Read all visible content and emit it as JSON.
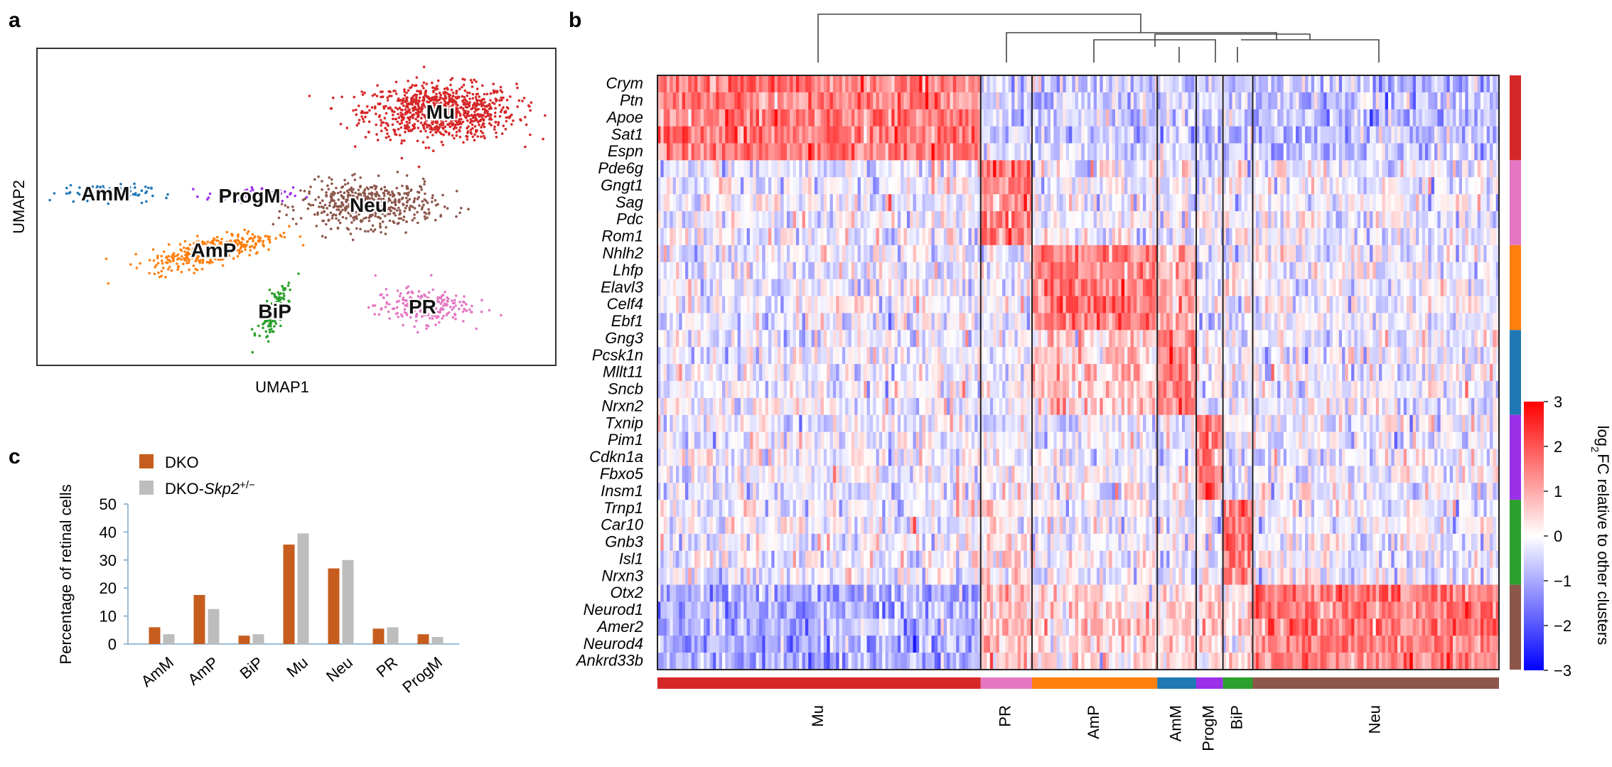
{
  "panels": {
    "a": "a",
    "b": "b",
    "c": "c"
  },
  "colors": {
    "Mu": "#d62728",
    "PR": "#e377c2",
    "AmP": "#ff7f0e",
    "AmM": "#1f77b4",
    "ProgM": "#9b30e8",
    "BiP": "#2ca02c",
    "Neu": "#8c564b",
    "DKO": "#c65d1e",
    "DKO_Skp2": "#bdbdbd"
  },
  "umap": {
    "xlabel": "UMAP1",
    "ylabel": "UMAP2",
    "clusters": [
      {
        "name": "Mu",
        "cx": 5.6,
        "cy": 8.6,
        "sx": 0.95,
        "sy": 0.55,
        "n": 900
      },
      {
        "name": "Neu",
        "cx": 4.6,
        "cy": 6.55,
        "sx": 0.85,
        "sy": 0.45,
        "n": 520
      },
      {
        "name": "AmM",
        "cx": 0.95,
        "cy": 6.8,
        "sx": 0.55,
        "sy": 0.18,
        "n": 110
      },
      {
        "name": "ProgM",
        "cx": 2.95,
        "cy": 6.75,
        "sx": 0.55,
        "sy": 0.16,
        "n": 60
      },
      {
        "name": "AmP",
        "cx": 2.45,
        "cy": 5.55,
        "sx": 0.8,
        "sy": 0.28,
        "n": 360
      },
      {
        "name": "BiP",
        "cx": 3.3,
        "cy": 4.2,
        "sx": 0.14,
        "sy": 0.55,
        "n": 120
      },
      {
        "name": "PR",
        "cx": 5.35,
        "cy": 4.3,
        "sx": 0.6,
        "sy": 0.35,
        "n": 220
      }
    ]
  },
  "bar": {
    "type": "bar",
    "title": "",
    "ylabel": "Percentage of retinal cells",
    "ylim": [
      0,
      50
    ],
    "yticks": [
      "0",
      "10",
      "20",
      "30",
      "40",
      "50"
    ],
    "categories": [
      "AmM",
      "AmP",
      "BiP",
      "Mu",
      "Neu",
      "PR",
      "ProgM"
    ],
    "legend": {
      "dko": "DKO",
      "skp2_prefix": "DKO-",
      "skp2_gene": "Skp2",
      "skp2_suffix": "+/−"
    },
    "series": [
      {
        "name": "DKO",
        "values": [
          6,
          17.5,
          3,
          35.5,
          27,
          5.5,
          3.5
        ]
      },
      {
        "name": "DKO-Skp2+/−",
        "values": [
          3.5,
          12.5,
          3.5,
          39.5,
          30,
          6,
          2.5
        ]
      }
    ]
  },
  "heatmap": {
    "genes": [
      "Crym",
      "Ptn",
      "Apoe",
      "Sat1",
      "Espn",
      "Pde6g",
      "Gngt1",
      "Sag",
      "Pdc",
      "Rom1",
      "Nhlh2",
      "Lhfp",
      "Elavl3",
      "Celf4",
      "Ebf1",
      "Gng3",
      "Pcsk1n",
      "Mllt11",
      "Sncb",
      "Nrxn2",
      "Txnip",
      "Pim1",
      "Cdkn1a",
      "Fbxo5",
      "Insm1",
      "Trnp1",
      "Car10",
      "Gnb3",
      "Isl1",
      "Nrxn3",
      "Otx2",
      "Neurod1",
      "Amer2",
      "Neurod4",
      "Ankrd33b"
    ],
    "gene_groups": [
      "Mu",
      "PR",
      "AmP",
      "AmM",
      "ProgM",
      "BiP",
      "Neu"
    ],
    "clusters": [
      {
        "name": "Mu",
        "cells": 315
      },
      {
        "name": "PR",
        "cells": 50
      },
      {
        "name": "AmP",
        "cells": 122
      },
      {
        "name": "AmM",
        "cells": 38
      },
      {
        "name": "ProgM",
        "cells": 26
      },
      {
        "name": "BiP",
        "cells": 29
      },
      {
        "name": "Neu",
        "cells": 240
      }
    ],
    "colorbar": {
      "min": -3,
      "max": 3,
      "ticks": [
        "3",
        "2",
        "1",
        "0",
        "−1",
        "−2",
        "−3"
      ],
      "label_prefix": "log",
      "label_sub": "2",
      "label_suffix": "FC relative to other clusters"
    }
  },
  "chart_data": [
    {
      "type": "scatter",
      "title": "",
      "xlabel": "UMAP1",
      "ylabel": "UMAP2",
      "series": [
        {
          "name": "Mu"
        },
        {
          "name": "Neu"
        },
        {
          "name": "AmM"
        },
        {
          "name": "ProgM"
        },
        {
          "name": "AmP"
        },
        {
          "name": "BiP"
        },
        {
          "name": "PR"
        }
      ]
    },
    {
      "type": "heatmap",
      "x": [
        "Mu",
        "PR",
        "AmP",
        "AmM",
        "ProgM",
        "BiP",
        "Neu"
      ],
      "y": [
        "Crym",
        "Ptn",
        "Apoe",
        "Sat1",
        "Espn",
        "Pde6g",
        "Gngt1",
        "Sag",
        "Pdc",
        "Rom1",
        "Nhlh2",
        "Lhfp",
        "Elavl3",
        "Celf4",
        "Ebf1",
        "Gng3",
        "Pcsk1n",
        "Mllt11",
        "Sncb",
        "Nrxn2",
        "Txnip",
        "Pim1",
        "Cdkn1a",
        "Fbxo5",
        "Insm1",
        "Trnp1",
        "Car10",
        "Gnb3",
        "Isl1",
        "Nrxn3",
        "Otx2",
        "Neurod1",
        "Amer2",
        "Neurod4",
        "Ankrd33b"
      ],
      "zlim": [
        -3,
        3
      ],
      "zlabel": "log2FC relative to other clusters"
    },
    {
      "type": "bar",
      "categories": [
        "AmM",
        "AmP",
        "BiP",
        "Mu",
        "Neu",
        "PR",
        "ProgM"
      ],
      "series": [
        {
          "name": "DKO",
          "values": [
            6,
            17.5,
            3,
            35.5,
            27,
            5.5,
            3.5
          ]
        },
        {
          "name": "DKO-Skp2+/−",
          "values": [
            3.5,
            12.5,
            3.5,
            39.5,
            30,
            6,
            2.5
          ]
        }
      ],
      "ylabel": "Percentage of retinal cells",
      "ylim": [
        0,
        50
      ]
    }
  ]
}
